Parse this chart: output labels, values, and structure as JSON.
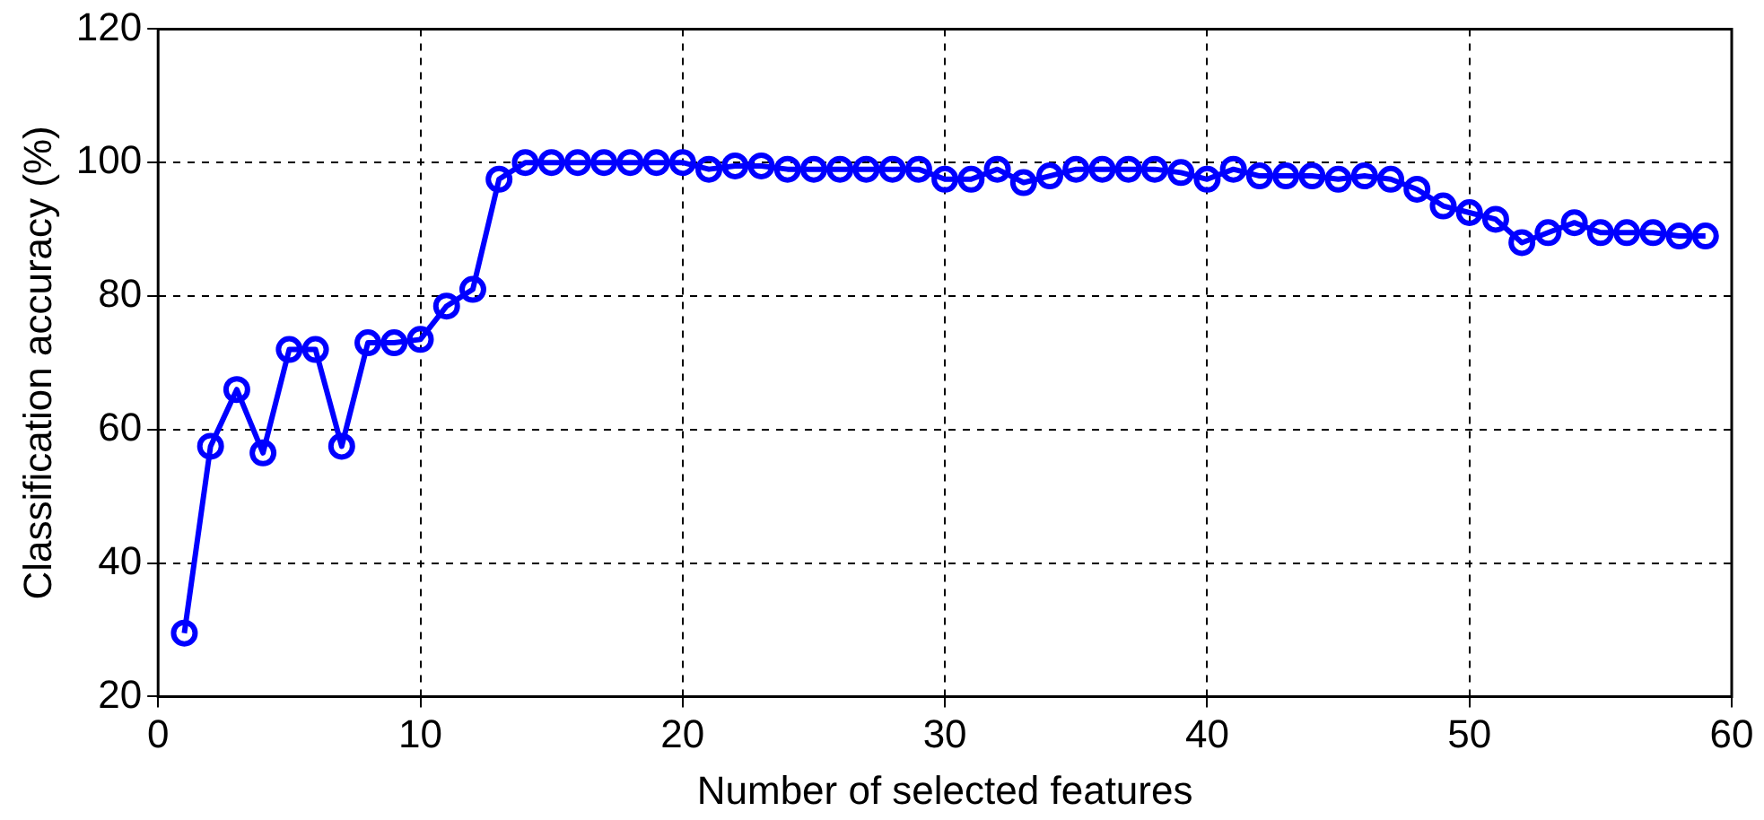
{
  "chart_data": {
    "type": "line",
    "xlabel": "Number of selected features",
    "ylabel": "Classification accuracy (%)",
    "x": [
      1,
      2,
      3,
      4,
      5,
      6,
      7,
      8,
      9,
      10,
      11,
      12,
      13,
      14,
      15,
      16,
      17,
      18,
      19,
      20,
      21,
      22,
      23,
      24,
      25,
      26,
      27,
      28,
      29,
      30,
      31,
      32,
      33,
      34,
      35,
      36,
      37,
      38,
      39,
      40,
      41,
      42,
      43,
      44,
      45,
      46,
      47,
      48,
      49,
      50,
      51,
      52,
      53,
      54,
      55,
      56,
      57,
      58,
      59
    ],
    "series": [
      {
        "color": "#0000ff",
        "values": [
          29.5,
          57.5,
          66,
          56.5,
          72,
          72,
          57.5,
          73,
          73,
          73.5,
          78.5,
          81,
          97.5,
          100,
          100,
          100,
          100,
          100,
          100,
          100,
          99,
          99.5,
          99.5,
          99,
          99,
          99,
          99,
          99,
          99,
          97.5,
          97.5,
          99,
          97,
          98,
          99,
          99,
          99,
          99,
          98.5,
          97.5,
          99,
          98,
          98,
          98,
          97.5,
          98,
          97.5,
          96,
          93.5,
          92.5,
          91.5,
          88,
          89.5,
          91,
          89.5,
          89.5,
          89.5,
          89,
          89
        ]
      }
    ],
    "xlim": [
      0,
      60
    ],
    "xticks": [
      0,
      10,
      20,
      30,
      40,
      50,
      60
    ],
    "ylim": [
      20,
      120
    ],
    "yticks": [
      20,
      40,
      60,
      80,
      100,
      120
    ],
    "grid": true,
    "legend": false,
    "marker": "circle",
    "line_style": "solid"
  }
}
